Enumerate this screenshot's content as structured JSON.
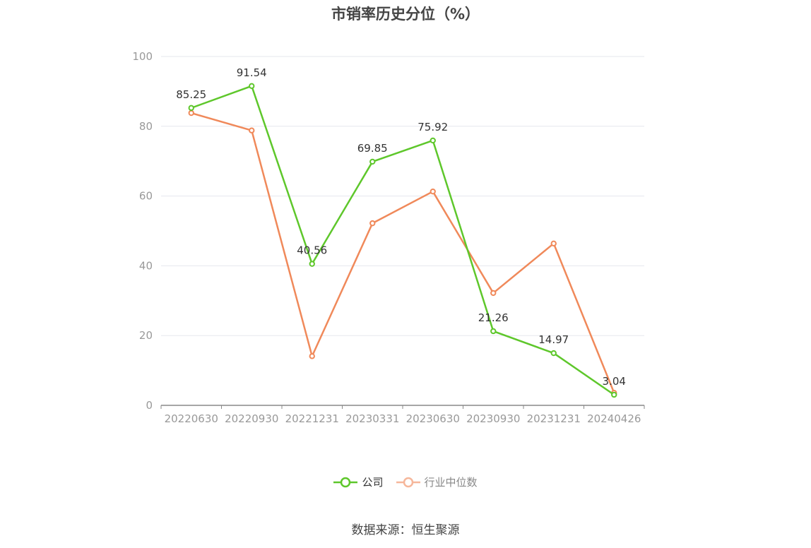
{
  "title": "市销率历史分位（%）",
  "source": "数据来源：恒生聚源",
  "colors": {
    "company": "#5ec72b",
    "industry": "#f0895a",
    "industry_legend": "#f6b79b",
    "grid": "#e5e7ee",
    "axis": "#888888",
    "tick_text": "#999999",
    "label_text": "#333333"
  },
  "chart_data": {
    "type": "line",
    "title": "市销率历史分位（%）",
    "categories": [
      "20220630",
      "20220930",
      "20221231",
      "20230331",
      "20230630",
      "20230930",
      "20231231",
      "20240426"
    ],
    "ylim": [
      0,
      100
    ],
    "yticks": [
      0,
      20,
      40,
      60,
      80,
      100
    ],
    "grid": true,
    "legend_position": "bottom",
    "series": [
      {
        "name": "公司",
        "values": [
          85.25,
          91.54,
          40.56,
          69.85,
          75.92,
          21.26,
          14.97,
          3.04
        ],
        "data_labels": [
          "85.25",
          "91.54",
          "40.56",
          "69.85",
          "75.92",
          "21.26",
          "14.97",
          "3.04"
        ]
      },
      {
        "name": "行业中位数",
        "values": [
          83.8,
          78.8,
          14.1,
          52.2,
          61.3,
          32.2,
          46.4,
          3.6
        ]
      }
    ]
  }
}
